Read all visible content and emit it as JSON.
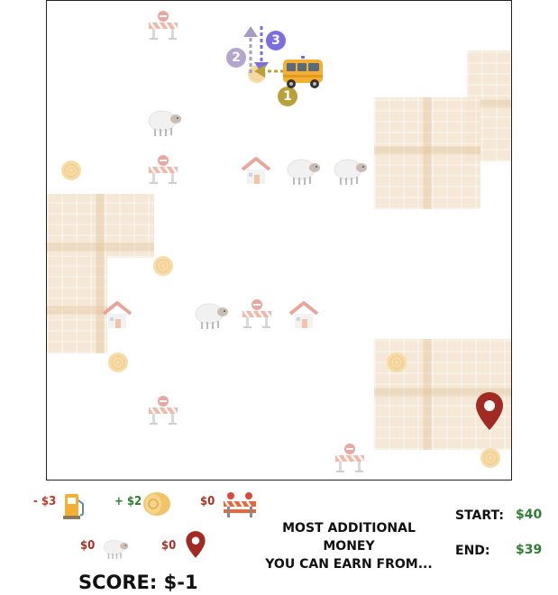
{
  "legend": {
    "fuel": {
      "value": "- $3",
      "icon": "fuel-pump-icon"
    },
    "hay": {
      "value": "+ $2",
      "icon": "hay-bale-icon"
    },
    "roadblock": {
      "value": "$0",
      "icon": "roadblock-icon"
    },
    "sheep": {
      "value": "$0",
      "icon": "sheep-icon"
    },
    "destination": {
      "value": "$0",
      "icon": "map-pin-icon"
    }
  },
  "message": {
    "line1": "MOST ADDITIONAL MONEY",
    "line2": "YOU CAN EARN FROM..."
  },
  "start": {
    "label": "START:",
    "value": "$40"
  },
  "end": {
    "label": "END:",
    "value": "$39"
  },
  "score": "SCORE: $-1",
  "steps": {
    "one": "1",
    "two": "2",
    "three": "3"
  },
  "colors": {
    "accent_green": "#2e7d32",
    "cost_red": "#c0392b",
    "pin_red": "#a12a22",
    "step_purple": "#7b6fe0",
    "step_gold": "#b8a13a"
  }
}
